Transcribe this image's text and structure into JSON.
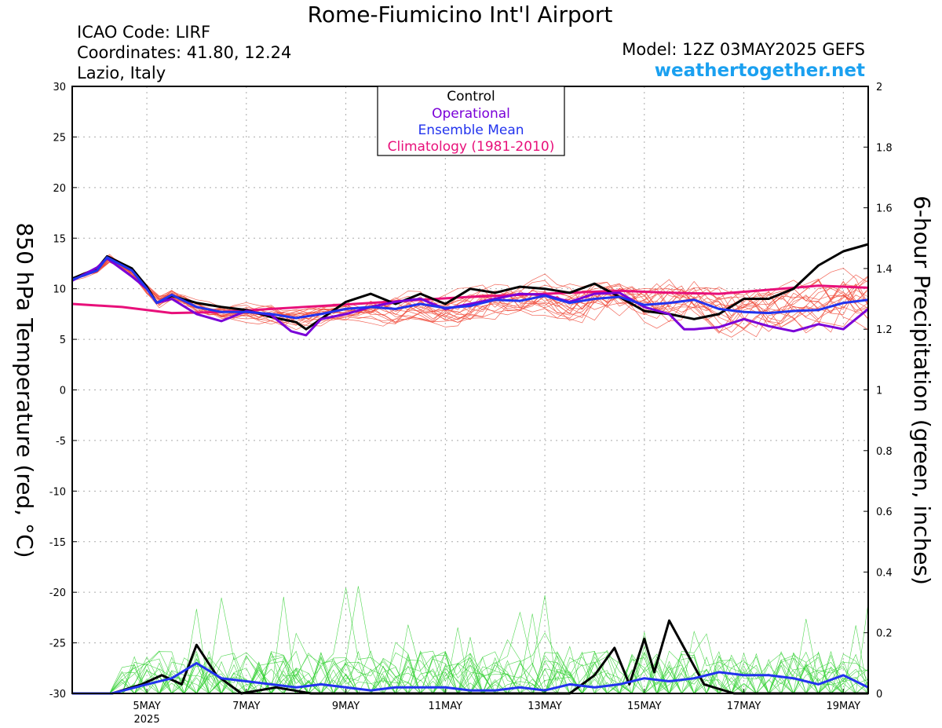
{
  "header": {
    "title": "Rome-Fiumicino Int'l Airport",
    "icao": "ICAO Code: LIRF",
    "coords": "Coordinates: 41.80, 12.24",
    "region": "Lazio, Italy",
    "model": "Model: 12Z 03MAY2025 GEFS",
    "site": "weathertogether.net"
  },
  "colors": {
    "control": "#000000",
    "operational": "#7a00d8",
    "mean": "#2233ee",
    "climatology": "#e8107a",
    "members_temp": "#f04a3a",
    "members_precip": "#30d030",
    "site": "#1aa0f0",
    "grid": "#aaaaaa"
  },
  "chart_data": {
    "type": "line",
    "ylabel": "850 hPa Temperature (red, °C)",
    "y2label": "6-hour Precipitation (green, inches)",
    "year_label": "2025",
    "ylim": [
      -30,
      30
    ],
    "y2lim": [
      0,
      2
    ],
    "yticks": [
      30,
      25,
      20,
      15,
      10,
      5,
      0,
      -5,
      -10,
      -15,
      -20,
      -25,
      -30
    ],
    "y2ticks": [
      2,
      1.8,
      1.6,
      1.4,
      1.2,
      1,
      0.8,
      0.6,
      0.4,
      0.2,
      0
    ],
    "xlim": [
      3.5,
      19.5
    ],
    "xticks": [
      {
        "label": "5MAY",
        "day": 5
      },
      {
        "label": "7MAY",
        "day": 7
      },
      {
        "label": "9MAY",
        "day": 9
      },
      {
        "label": "11MAY",
        "day": 11
      },
      {
        "label": "13MAY",
        "day": 13
      },
      {
        "label": "15MAY",
        "day": 15
      },
      {
        "label": "17MAY",
        "day": 17
      },
      {
        "label": "19MAY",
        "day": 19
      }
    ],
    "grid": true,
    "legend": {
      "placement": "top-center",
      "items": [
        {
          "label": "Control",
          "color": "#000000"
        },
        {
          "label": "Operational",
          "color": "#7a00d8"
        },
        {
          "label": "Ensemble Mean",
          "color": "#2233ee"
        },
        {
          "label": "Climatology (1981-2010)",
          "color": "#e8107a"
        }
      ]
    },
    "series": [
      {
        "name": "Climatology (1981-2010)",
        "axis": "temp",
        "x": [
          3.5,
          4.5,
          5.5,
          6.5,
          7.5,
          8.5,
          9.5,
          10.5,
          11.5,
          12.5,
          13.5,
          14.5,
          15.5,
          16.5,
          17.5,
          18.5,
          19.5
        ],
        "y": [
          8.5,
          8.2,
          7.6,
          7.7,
          8.0,
          8.3,
          8.6,
          8.9,
          9.2,
          9.4,
          9.6,
          9.8,
          9.6,
          9.5,
          9.9,
          10.3,
          10.1
        ]
      },
      {
        "name": "Control",
        "axis": "temp",
        "x": [
          3.5,
          4.0,
          4.2,
          4.7,
          5.0,
          5.2,
          5.5,
          6.0,
          6.5,
          7.0,
          7.5,
          8.0,
          8.2,
          8.5,
          9.0,
          9.5,
          10.0,
          10.5,
          11.0,
          11.5,
          12.0,
          12.5,
          13.0,
          13.5,
          14.0,
          14.5,
          15.0,
          15.5,
          16.0,
          16.5,
          17.0,
          17.5,
          18.0,
          18.5,
          19.0,
          19.5
        ],
        "y": [
          11.0,
          12.0,
          13.2,
          12.0,
          10.2,
          8.6,
          9.3,
          8.6,
          8.2,
          7.9,
          7.2,
          6.7,
          6.0,
          7.0,
          8.7,
          9.5,
          8.5,
          9.5,
          8.5,
          10.0,
          9.6,
          10.2,
          10.0,
          9.6,
          10.5,
          9.2,
          7.8,
          7.5,
          7.0,
          7.5,
          9.0,
          9.0,
          10.0,
          12.3,
          13.7,
          14.4
        ]
      },
      {
        "name": "Operational",
        "axis": "temp",
        "x": [
          3.5,
          4.0,
          4.2,
          4.7,
          5.0,
          5.2,
          5.5,
          6.0,
          6.5,
          7.0,
          7.5,
          7.9,
          8.2,
          8.5,
          9.0,
          9.5,
          10.0,
          10.5,
          11.0,
          11.5,
          12.0,
          12.5,
          13.0,
          13.5,
          14.0,
          14.5,
          15.0,
          15.5,
          15.8,
          16.0,
          16.5,
          17.0,
          17.5,
          18.0,
          18.5,
          19.0,
          19.5
        ],
        "y": [
          10.8,
          12.1,
          13.0,
          11.2,
          10.0,
          8.6,
          9.0,
          7.5,
          6.8,
          7.8,
          7.4,
          5.8,
          5.4,
          7.0,
          7.5,
          8.2,
          8.7,
          9.0,
          8.0,
          8.5,
          9.0,
          9.5,
          9.4,
          8.7,
          9.5,
          9.6,
          8.2,
          7.5,
          6.0,
          6.0,
          6.2,
          7.0,
          6.3,
          5.8,
          6.5,
          6.0,
          8.0
        ]
      },
      {
        "name": "Ensemble Mean",
        "axis": "temp",
        "x": [
          3.5,
          4.0,
          4.2,
          4.7,
          5.0,
          5.2,
          5.5,
          6.0,
          6.5,
          7.0,
          7.5,
          8.0,
          8.5,
          9.0,
          9.5,
          10.0,
          10.5,
          11.0,
          11.5,
          12.0,
          12.5,
          13.0,
          13.5,
          14.0,
          14.5,
          15.0,
          15.5,
          16.0,
          16.5,
          17.0,
          17.5,
          18.0,
          18.5,
          19.0,
          19.5
        ],
        "y": [
          10.9,
          11.8,
          13.1,
          11.8,
          10.0,
          8.6,
          9.4,
          8.2,
          7.7,
          7.7,
          7.5,
          7.1,
          7.5,
          8.0,
          8.2,
          8.0,
          8.5,
          8.1,
          8.3,
          8.9,
          8.8,
          9.3,
          8.6,
          9.0,
          9.2,
          8.4,
          8.6,
          8.9,
          8.0,
          7.7,
          7.6,
          7.8,
          7.9,
          8.6,
          8.9
        ]
      },
      {
        "name": "Control",
        "axis": "precip",
        "x": [
          3.5,
          4.3,
          4.9,
          5.3,
          5.7,
          6.0,
          6.4,
          6.9,
          7.6,
          8.3,
          9.0,
          9.6,
          10.2,
          11.0,
          11.5,
          12.5,
          13.5,
          14.0,
          14.4,
          14.7,
          15.0,
          15.2,
          15.5,
          15.8,
          16.2,
          16.8,
          17.5,
          18.5,
          19.5
        ],
        "y": [
          0,
          0,
          0.03,
          0.06,
          0.03,
          0.16,
          0.06,
          0.0,
          0.02,
          0.0,
          0.0,
          0.0,
          0.0,
          0.0,
          0.0,
          0.0,
          0.0,
          0.06,
          0.15,
          0.03,
          0.18,
          0.07,
          0.24,
          0.15,
          0.03,
          0.0,
          0.0,
          0.0,
          0.0
        ]
      },
      {
        "name": "Ensemble Mean",
        "axis": "precip",
        "x": [
          3.5,
          4.3,
          5.0,
          5.5,
          6.0,
          6.5,
          7.0,
          7.5,
          8.0,
          8.5,
          9.0,
          9.5,
          10.0,
          10.5,
          11.0,
          11.5,
          12.0,
          12.5,
          13.0,
          13.5,
          14.0,
          14.5,
          15.0,
          15.5,
          16.0,
          16.5,
          17.0,
          17.5,
          18.0,
          18.5,
          19.0,
          19.5
        ],
        "y": [
          0,
          0,
          0.03,
          0.05,
          0.1,
          0.05,
          0.04,
          0.03,
          0.02,
          0.03,
          0.02,
          0.01,
          0.02,
          0.02,
          0.02,
          0.01,
          0.01,
          0.02,
          0.01,
          0.03,
          0.02,
          0.03,
          0.05,
          0.04,
          0.05,
          0.07,
          0.06,
          0.06,
          0.05,
          0.03,
          0.06,
          0.02
        ]
      }
    ]
  }
}
